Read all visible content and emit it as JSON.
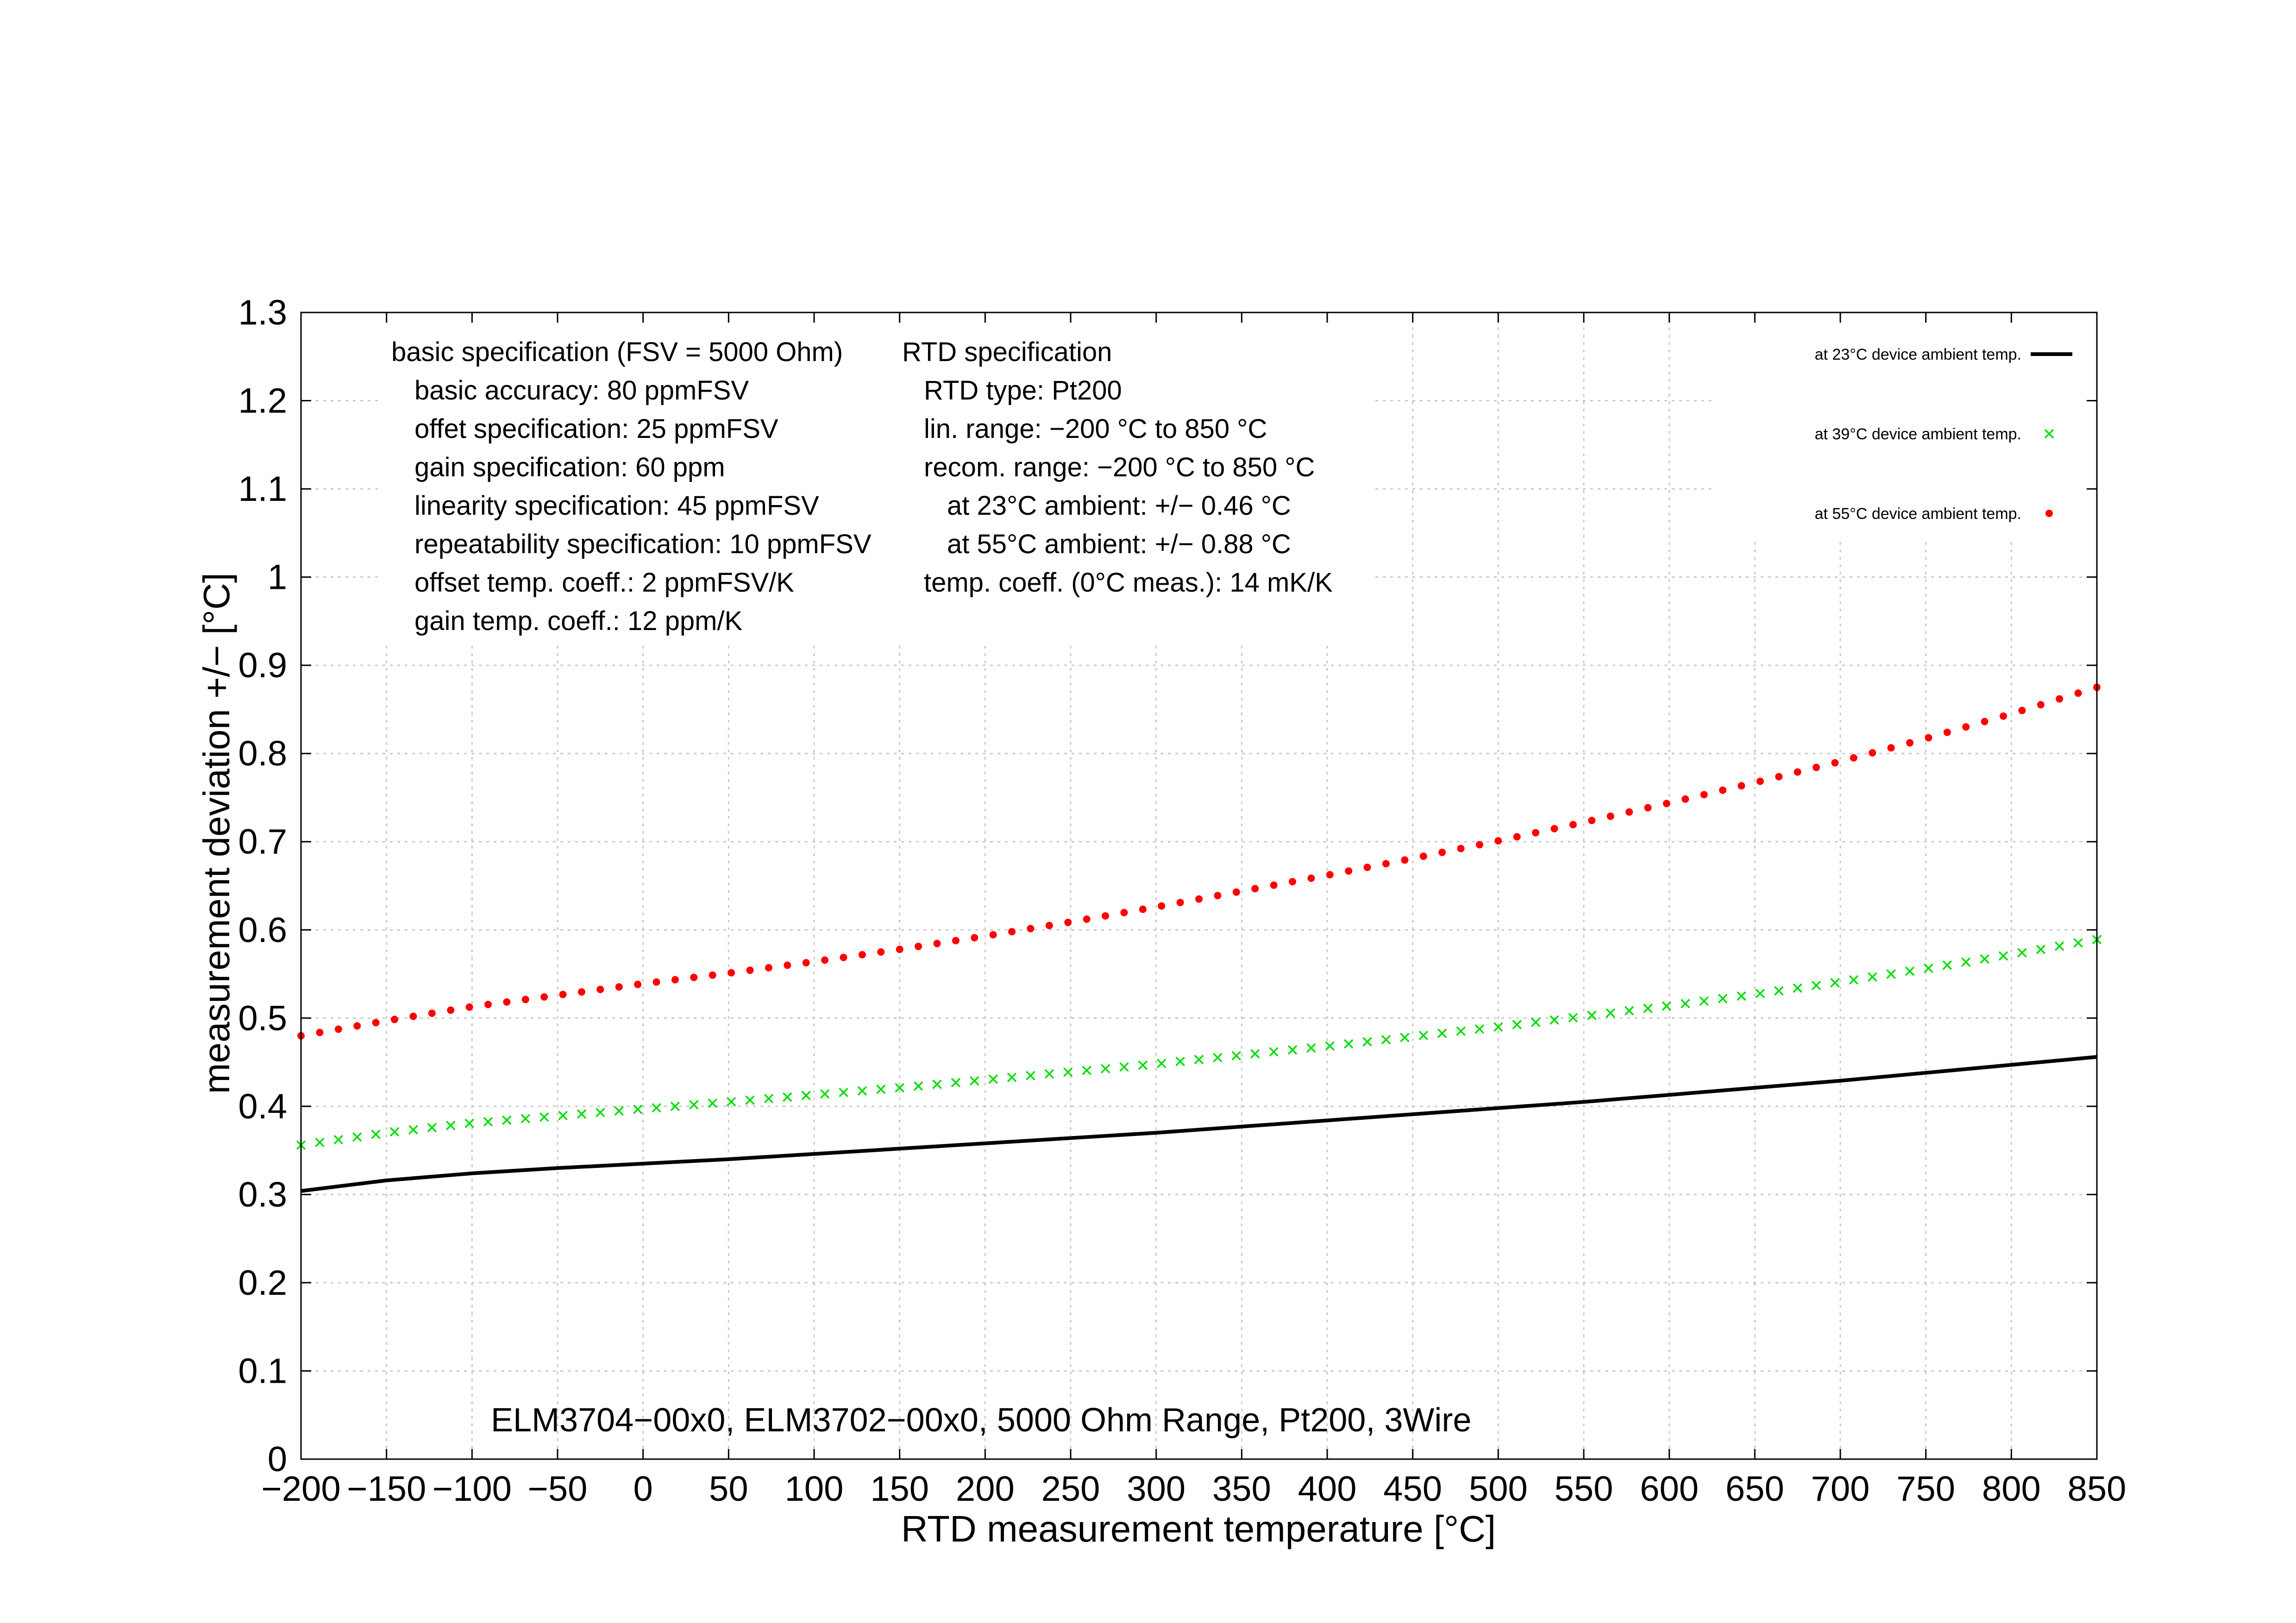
{
  "chart_data": {
    "type": "line",
    "title": "ELM3704−00x0, ELM3702−00x0, 5000 Ohm Range, Pt200, 3Wire",
    "xlabel": "RTD measurement temperature [°C]",
    "ylabel": "measurement deviation +/− [°C]",
    "xlim": [
      -200,
      850
    ],
    "ylim": [
      0,
      1.3
    ],
    "grid": true,
    "legend_position": "top-right",
    "x_ticks": [
      -200,
      -150,
      -100,
      -50,
      0,
      50,
      100,
      150,
      200,
      250,
      300,
      350,
      400,
      450,
      500,
      550,
      600,
      650,
      700,
      750,
      800,
      850
    ],
    "x_tick_labels": [
      "−200",
      "−150",
      "−100",
      "−50",
      "0",
      "50",
      "100",
      "150",
      "200",
      "250",
      "300",
      "350",
      "400",
      "450",
      "500",
      "550",
      "600",
      "650",
      "700",
      "750",
      "800",
      "850"
    ],
    "y_ticks": [
      0,
      0.1,
      0.2,
      0.3,
      0.4,
      0.5,
      0.6,
      0.7,
      0.8,
      0.9,
      1,
      1.1,
      1.2,
      1.3
    ],
    "y_tick_labels": [
      "0",
      "0.1",
      "0.2",
      "0.3",
      "0.4",
      "0.5",
      "0.6",
      "0.7",
      "0.8",
      "0.9",
      "1",
      "1.1",
      "1.2",
      "1.3"
    ],
    "series": [
      {
        "name": "at 23°C device ambient temp.",
        "style": "line",
        "color": "#000000",
        "x": [
          -200,
          -150,
          -100,
          -50,
          0,
          50,
          100,
          150,
          200,
          250,
          300,
          350,
          400,
          450,
          500,
          550,
          600,
          650,
          700,
          750,
          800,
          850
        ],
        "y": [
          0.304,
          0.316,
          0.324,
          0.33,
          0.335,
          0.34,
          0.346,
          0.352,
          0.358,
          0.364,
          0.37,
          0.377,
          0.384,
          0.391,
          0.398,
          0.405,
          0.413,
          0.421,
          0.429,
          0.438,
          0.447,
          0.456
        ]
      },
      {
        "name": "at 39°C device ambient temp.",
        "style": "cross",
        "color": "#00dd00",
        "x": [
          -200,
          -150,
          -100,
          -50,
          0,
          50,
          100,
          150,
          200,
          250,
          300,
          350,
          400,
          450,
          500,
          550,
          600,
          650,
          700,
          750,
          800,
          850
        ],
        "y": [
          0.356,
          0.37,
          0.381,
          0.389,
          0.397,
          0.405,
          0.413,
          0.421,
          0.43,
          0.439,
          0.448,
          0.458,
          0.468,
          0.479,
          0.49,
          0.502,
          0.514,
          0.527,
          0.541,
          0.556,
          0.572,
          0.589
        ]
      },
      {
        "name": "at 55°C device ambient temp.",
        "style": "dot",
        "color": "#ff0000",
        "x": [
          -200,
          -150,
          -100,
          -50,
          0,
          50,
          100,
          150,
          200,
          250,
          300,
          350,
          400,
          450,
          500,
          550,
          600,
          650,
          700,
          750,
          800,
          850
        ],
        "y": [
          0.48,
          0.497,
          0.513,
          0.526,
          0.539,
          0.551,
          0.564,
          0.578,
          0.593,
          0.609,
          0.626,
          0.644,
          0.662,
          0.681,
          0.701,
          0.722,
          0.744,
          0.767,
          0.791,
          0.817,
          0.845,
          0.875
        ]
      }
    ],
    "annotations": {
      "basic_spec": [
        "basic specification (FSV = 5000 Ohm)",
        "basic accuracy: 80 ppmFSV",
        "offet specification: 25 ppmFSV",
        "gain specification: 60 ppm",
        "linearity specification: 45 ppmFSV",
        "repeatability specification: 10 ppmFSV",
        "offset temp. coeff.: 2 ppmFSV/K",
        "gain temp. coeff.: 12 ppm/K"
      ],
      "rtd_spec": [
        "RTD specification",
        "RTD type: Pt200",
        "lin. range: −200 °C to 850 °C",
        "recom. range: −200 °C to 850 °C",
        "at 23°C ambient: +/− 0.46 °C",
        "at 55°C ambient: +/− 0.88 °C",
        "temp. coeff. (0°C meas.): 14 mK/K"
      ]
    }
  }
}
